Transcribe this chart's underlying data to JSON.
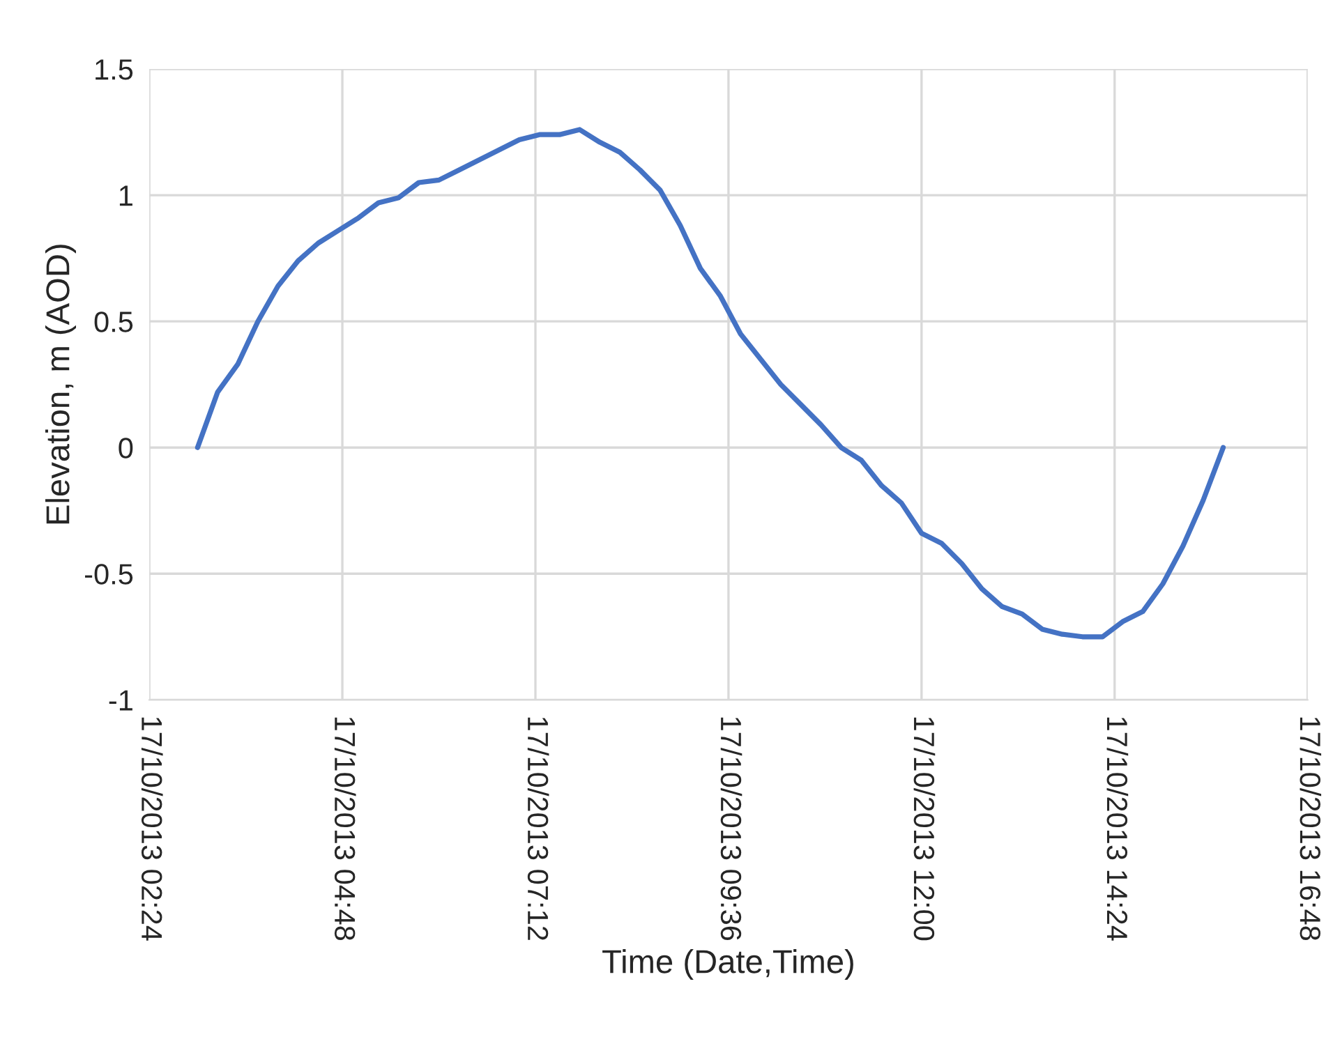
{
  "chart_data": {
    "type": "line",
    "xlabel": "Time (Date,Time)",
    "ylabel": "Elevation, m (AOD)",
    "x": [
      "2013-10-17T03:00",
      "2013-10-17T03:15",
      "2013-10-17T03:30",
      "2013-10-17T03:45",
      "2013-10-17T04:00",
      "2013-10-17T04:15",
      "2013-10-17T04:30",
      "2013-10-17T04:45",
      "2013-10-17T05:00",
      "2013-10-17T05:15",
      "2013-10-17T05:30",
      "2013-10-17T05:45",
      "2013-10-17T06:00",
      "2013-10-17T06:15",
      "2013-10-17T06:30",
      "2013-10-17T06:45",
      "2013-10-17T07:00",
      "2013-10-17T07:15",
      "2013-10-17T07:30",
      "2013-10-17T07:45",
      "2013-10-17T08:00",
      "2013-10-17T08:15",
      "2013-10-17T08:30",
      "2013-10-17T08:45",
      "2013-10-17T09:00",
      "2013-10-17T09:15",
      "2013-10-17T09:30",
      "2013-10-17T09:45",
      "2013-10-17T10:00",
      "2013-10-17T10:15",
      "2013-10-17T10:30",
      "2013-10-17T10:45",
      "2013-10-17T11:00",
      "2013-10-17T11:15",
      "2013-10-17T11:30",
      "2013-10-17T11:45",
      "2013-10-17T12:00",
      "2013-10-17T12:15",
      "2013-10-17T12:30",
      "2013-10-17T12:45",
      "2013-10-17T13:00",
      "2013-10-17T13:15",
      "2013-10-17T13:30",
      "2013-10-17T13:45",
      "2013-10-17T14:00",
      "2013-10-17T14:15",
      "2013-10-17T14:30",
      "2013-10-17T14:45",
      "2013-10-17T15:00",
      "2013-10-17T15:15",
      "2013-10-17T15:30",
      "2013-10-17T15:45"
    ],
    "series": [
      {
        "color": "#4472c4",
        "values": [
          0,
          0.22,
          0.33,
          0.5,
          0.64,
          0.74,
          0.81,
          0.86,
          0.91,
          0.97,
          0.99,
          1.05,
          1.06,
          1.1,
          1.14,
          1.18,
          1.22,
          1.24,
          1.24,
          1.26,
          1.21,
          1.17,
          1.1,
          1.02,
          0.88,
          0.71,
          0.6,
          0.45,
          0.35,
          0.25,
          0.17,
          0.09,
          0,
          -0.05,
          -0.15,
          -0.22,
          -0.34,
          -0.38,
          -0.46,
          -0.56,
          -0.63,
          -0.66,
          -0.72,
          -0.74,
          -0.75,
          -0.75,
          -0.69,
          -0.65,
          -0.54,
          -0.39,
          -0.21,
          0
        ]
      }
    ],
    "xlim": [
      "2013-10-17T02:24",
      "2013-10-17T16:48"
    ],
    "xticks": [
      {
        "value": "2013-10-17T02:24",
        "label": "17/10/2013 02:24"
      },
      {
        "value": "2013-10-17T04:48",
        "label": "17/10/2013 04:48"
      },
      {
        "value": "2013-10-17T07:12",
        "label": "17/10/2013 07:12"
      },
      {
        "value": "2013-10-17T09:36",
        "label": "17/10/2013 09:36"
      },
      {
        "value": "2013-10-17T12:00",
        "label": "17/10/2013 12:00"
      },
      {
        "value": "2013-10-17T14:24",
        "label": "17/10/2013 14:24"
      },
      {
        "value": "2013-10-17T16:48",
        "label": "17/10/2013 16:48"
      }
    ],
    "ylim": [
      -1,
      1.5
    ],
    "yticks": [
      -1,
      -0.5,
      0,
      0.5,
      1,
      1.5
    ],
    "grid": true,
    "marker": "none",
    "line_style": "solid"
  }
}
